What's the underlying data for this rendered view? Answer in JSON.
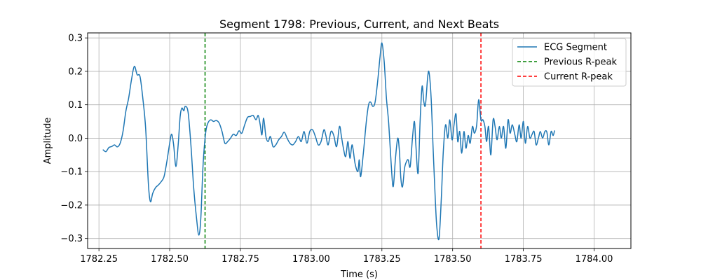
{
  "chart_data": {
    "type": "line",
    "title": "Segment 1798: Previous, Current, and Next Beats",
    "xlabel": "Time (s)",
    "ylabel": "Amplitude",
    "xlim": [
      1782.21,
      1784.13
    ],
    "ylim": [
      -0.33,
      0.315
    ],
    "xticks": [
      1782.25,
      1782.5,
      1782.75,
      1783.0,
      1783.25,
      1783.5,
      1783.75,
      1784.0
    ],
    "xtick_labels": [
      "1782.25",
      "1782.50",
      "1782.75",
      "1783.00",
      "1783.25",
      "1783.50",
      "1783.75",
      "1784.00"
    ],
    "yticks": [
      -0.3,
      -0.2,
      -0.1,
      0.0,
      0.1,
      0.2,
      0.3
    ],
    "ytick_labels": [
      "−0.3",
      "−0.2",
      "−0.1",
      "0.0",
      "0.1",
      "0.2",
      "0.3"
    ],
    "grid": true,
    "legend_position": "top-right",
    "series": [
      {
        "name": "ECG Segment",
        "color": "#1f77b4",
        "style": "solid",
        "points": [
          [
            1782.265,
            -0.035
          ],
          [
            1782.275,
            -0.04
          ],
          [
            1782.285,
            -0.028
          ],
          [
            1782.295,
            -0.025
          ],
          [
            1782.305,
            -0.02
          ],
          [
            1782.315,
            -0.026
          ],
          [
            1782.325,
            -0.015
          ],
          [
            1782.335,
            0.02
          ],
          [
            1782.345,
            0.08
          ],
          [
            1782.355,
            0.12
          ],
          [
            1782.365,
            0.175
          ],
          [
            1782.375,
            0.215
          ],
          [
            1782.385,
            0.19
          ],
          [
            1782.395,
            0.185
          ],
          [
            1782.405,
            0.12
          ],
          [
            1782.415,
            0.03
          ],
          [
            1782.425,
            -0.14
          ],
          [
            1782.432,
            -0.19
          ],
          [
            1782.44,
            -0.165
          ],
          [
            1782.45,
            -0.148
          ],
          [
            1782.46,
            -0.14
          ],
          [
            1782.47,
            -0.13
          ],
          [
            1782.48,
            -0.115
          ],
          [
            1782.49,
            -0.07
          ],
          [
            1782.5,
            -0.015
          ],
          [
            1782.507,
            0.012
          ],
          [
            1782.514,
            -0.02
          ],
          [
            1782.522,
            -0.085
          ],
          [
            1782.53,
            -0.02
          ],
          [
            1782.537,
            0.065
          ],
          [
            1782.543,
            0.09
          ],
          [
            1782.55,
            0.082
          ],
          [
            1782.555,
            0.095
          ],
          [
            1782.565,
            0.078
          ],
          [
            1782.575,
            -0.02
          ],
          [
            1782.585,
            -0.15
          ],
          [
            1782.595,
            -0.24
          ],
          [
            1782.603,
            -0.29
          ],
          [
            1782.61,
            -0.24
          ],
          [
            1782.618,
            -0.08
          ],
          [
            1782.627,
            0.015
          ],
          [
            1782.635,
            0.045
          ],
          [
            1782.645,
            0.055
          ],
          [
            1782.655,
            0.05
          ],
          [
            1782.665,
            0.053
          ],
          [
            1782.675,
            0.045
          ],
          [
            1782.685,
            0.02
          ],
          [
            1782.695,
            -0.015
          ],
          [
            1782.705,
            -0.01
          ],
          [
            1782.715,
            0.0
          ],
          [
            1782.725,
            0.012
          ],
          [
            1782.735,
            0.008
          ],
          [
            1782.745,
            0.022
          ],
          [
            1782.755,
            0.015
          ],
          [
            1782.765,
            0.04
          ],
          [
            1782.775,
            0.062
          ],
          [
            1782.785,
            0.065
          ],
          [
            1782.795,
            0.068
          ],
          [
            1782.805,
            0.055
          ],
          [
            1782.813,
            0.068
          ],
          [
            1782.82,
            0.04
          ],
          [
            1782.826,
            0.01
          ],
          [
            1782.832,
            0.06
          ],
          [
            1782.84,
            0.005
          ],
          [
            1782.848,
            -0.01
          ],
          [
            1782.856,
            0.005
          ],
          [
            1782.865,
            -0.025
          ],
          [
            1782.875,
            -0.02
          ],
          [
            1782.885,
            -0.005
          ],
          [
            1782.895,
            0.005
          ],
          [
            1782.905,
            0.018
          ],
          [
            1782.915,
            0.0
          ],
          [
            1782.925,
            -0.015
          ],
          [
            1782.935,
            -0.02
          ],
          [
            1782.945,
            -0.01
          ],
          [
            1782.955,
            0.005
          ],
          [
            1782.965,
            -0.01
          ],
          [
            1782.975,
            0.02
          ],
          [
            1782.985,
            -0.015
          ],
          [
            1782.995,
            0.02
          ],
          [
            1783.005,
            0.025
          ],
          [
            1783.015,
            0.005
          ],
          [
            1783.025,
            -0.02
          ],
          [
            1783.035,
            -0.01
          ],
          [
            1783.045,
            0.025
          ],
          [
            1783.052,
            0.008
          ],
          [
            1783.06,
            -0.02
          ],
          [
            1783.07,
            0.02
          ],
          [
            1783.08,
            0.008
          ],
          [
            1783.09,
            -0.025
          ],
          [
            1783.1,
            0.035
          ],
          [
            1783.107,
            0.005
          ],
          [
            1783.114,
            -0.03
          ],
          [
            1783.122,
            -0.055
          ],
          [
            1783.13,
            -0.01
          ],
          [
            1783.137,
            -0.06
          ],
          [
            1783.145,
            -0.02
          ],
          [
            1783.155,
            -0.075
          ],
          [
            1783.165,
            -0.1
          ],
          [
            1783.17,
            -0.065
          ],
          [
            1783.175,
            -0.115
          ],
          [
            1783.185,
            -0.04
          ],
          [
            1783.195,
            0.05
          ],
          [
            1783.203,
            0.1
          ],
          [
            1783.21,
            0.108
          ],
          [
            1783.218,
            0.095
          ],
          [
            1783.226,
            0.108
          ],
          [
            1783.235,
            0.17
          ],
          [
            1783.243,
            0.24
          ],
          [
            1783.25,
            0.285
          ],
          [
            1783.258,
            0.23
          ],
          [
            1783.266,
            0.12
          ],
          [
            1783.274,
            0.045
          ],
          [
            1783.283,
            -0.08
          ],
          [
            1783.29,
            -0.145
          ],
          [
            1783.298,
            -0.06
          ],
          [
            1783.306,
            0.0
          ],
          [
            1783.312,
            -0.04
          ],
          [
            1783.317,
            -0.12
          ],
          [
            1783.323,
            -0.145
          ],
          [
            1783.33,
            -0.09
          ],
          [
            1783.337,
            -0.07
          ],
          [
            1783.343,
            -0.065
          ],
          [
            1783.35,
            -0.085
          ],
          [
            1783.358,
            0.0
          ],
          [
            1783.365,
            0.05
          ],
          [
            1783.37,
            -0.02
          ],
          [
            1783.378,
            -0.105
          ],
          [
            1783.385,
            0.05
          ],
          [
            1783.392,
            0.155
          ],
          [
            1783.398,
            0.11
          ],
          [
            1783.404,
            0.1
          ],
          [
            1783.412,
            0.185
          ],
          [
            1783.417,
            0.195
          ],
          [
            1783.424,
            0.12
          ],
          [
            1783.431,
            -0.03
          ],
          [
            1783.438,
            -0.17
          ],
          [
            1783.444,
            -0.265
          ],
          [
            1783.452,
            -0.3
          ],
          [
            1783.46,
            -0.18
          ],
          [
            1783.467,
            -0.04
          ],
          [
            1783.475,
            0.04
          ],
          [
            1783.483,
            0.0
          ],
          [
            1783.49,
            0.055
          ],
          [
            1783.498,
            -0.005
          ],
          [
            1783.505,
            0.04
          ],
          [
            1783.512,
            0.072
          ],
          [
            1783.518,
            -0.01
          ],
          [
            1783.525,
            0.02
          ],
          [
            1783.532,
            -0.045
          ],
          [
            1783.54,
            0.02
          ],
          [
            1783.547,
            -0.03
          ],
          [
            1783.555,
            0.008
          ],
          [
            1783.562,
            -0.015
          ],
          [
            1783.57,
            0.035
          ],
          [
            1783.577,
            0.015
          ],
          [
            1783.585,
            0.04
          ],
          [
            1783.592,
            0.115
          ],
          [
            1783.6,
            0.055
          ],
          [
            1783.607,
            0.055
          ],
          [
            1783.614,
            0.035
          ],
          [
            1783.62,
            -0.01
          ],
          [
            1783.627,
            0.035
          ],
          [
            1783.635,
            -0.05
          ],
          [
            1783.643,
            0.055
          ],
          [
            1783.65,
            0.035
          ],
          [
            1783.657,
            -0.005
          ],
          [
            1783.665,
            0.035
          ],
          [
            1783.672,
            0.0
          ],
          [
            1783.68,
            0.035
          ],
          [
            1783.688,
            -0.03
          ],
          [
            1783.696,
            0.055
          ],
          [
            1783.703,
            0.015
          ],
          [
            1783.711,
            0.04
          ],
          [
            1783.72,
            0.01
          ],
          [
            1783.727,
            -0.01
          ],
          [
            1783.735,
            0.04
          ],
          [
            1783.742,
            0.0
          ],
          [
            1783.75,
            0.05
          ],
          [
            1783.757,
            -0.015
          ],
          [
            1783.765,
            0.035
          ],
          [
            1783.773,
            0.0
          ],
          [
            1783.78,
            0.01
          ],
          [
            1783.788,
            0.02
          ],
          [
            1783.795,
            -0.02
          ],
          [
            1783.803,
            0.0
          ],
          [
            1783.81,
            0.02
          ],
          [
            1783.818,
            0.0
          ],
          [
            1783.826,
            0.02
          ],
          [
            1783.833,
            0.018
          ],
          [
            1783.84,
            -0.02
          ],
          [
            1783.848,
            0.02
          ],
          [
            1783.855,
            0.008
          ],
          [
            1783.86,
            0.022
          ]
        ]
      },
      {
        "name": "Previous R-peak",
        "color": "#008000",
        "style": "dashed",
        "x": 1782.625
      },
      {
        "name": "Current R-peak",
        "color": "#ff0000",
        "style": "dashed",
        "x": 1783.6
      }
    ]
  }
}
